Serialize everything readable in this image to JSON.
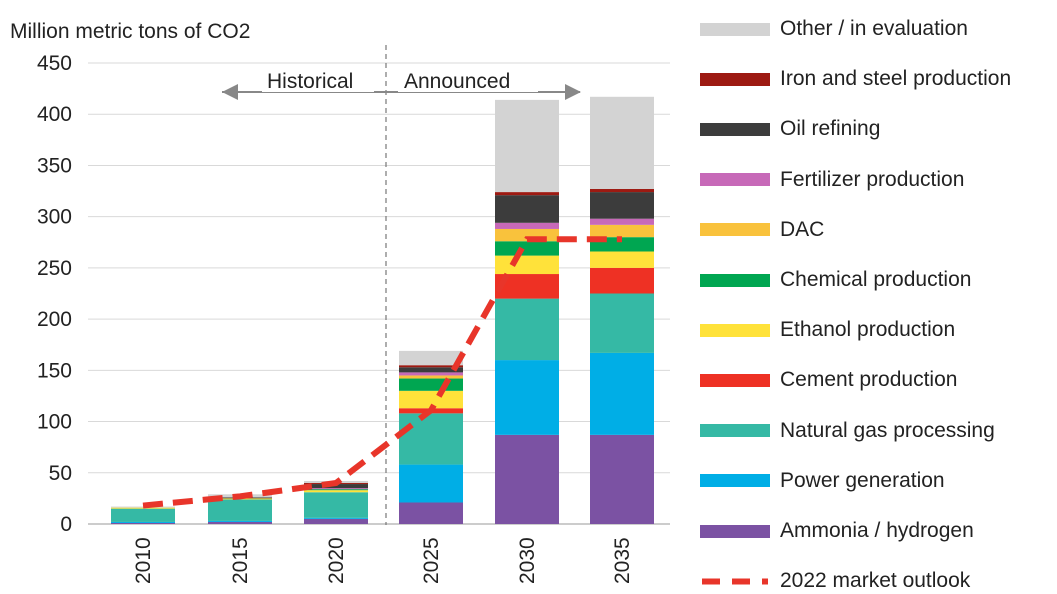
{
  "chart_data": {
    "type": "bar",
    "stacked": true,
    "ylabel": "Million metric tons of CO2",
    "ylim": [
      0,
      450
    ],
    "yticks": [
      0,
      50,
      100,
      150,
      200,
      250,
      300,
      350,
      400,
      450
    ],
    "grid": true,
    "legend_position": "right",
    "categories": [
      "2010",
      "2015",
      "2020",
      "2025",
      "2030",
      "2035"
    ],
    "series": [
      {
        "name": "Ammonia / hydrogen",
        "color": "#7b52a3",
        "values": [
          1,
          2,
          5,
          21,
          87,
          87
        ]
      },
      {
        "name": "Power generation",
        "color": "#00aee6",
        "values": [
          1,
          1,
          1,
          37,
          73,
          80
        ]
      },
      {
        "name": "Natural gas processing",
        "color": "#35b9a5",
        "values": [
          13,
          21,
          25,
          50,
          60,
          58
        ]
      },
      {
        "name": "Cement production",
        "color": "#ee3124",
        "values": [
          0,
          0,
          0,
          5,
          24,
          25
        ]
      },
      {
        "name": "Ethanol production",
        "color": "#ffe23a",
        "values": [
          1,
          1,
          2,
          17,
          18,
          16
        ]
      },
      {
        "name": "Chemical production",
        "color": "#00a651",
        "values": [
          0,
          0,
          1,
          12,
          14,
          14
        ]
      },
      {
        "name": "DAC",
        "color": "#f9c23c",
        "values": [
          0,
          0,
          0,
          3,
          12,
          12
        ]
      },
      {
        "name": "Fertilizer production",
        "color": "#c769b8",
        "values": [
          0,
          0,
          1,
          3,
          6,
          6
        ]
      },
      {
        "name": "Oil refining",
        "color": "#3c3c3c",
        "values": [
          0,
          1,
          4,
          5,
          27,
          26
        ]
      },
      {
        "name": "Iron and steel production",
        "color": "#9d1a12",
        "values": [
          0,
          0,
          1,
          2,
          3,
          3
        ]
      },
      {
        "name": "Other / in evaluation",
        "color": "#d3d3d3",
        "values": [
          1,
          3,
          2,
          14,
          90,
          90
        ]
      }
    ],
    "outlook": {
      "name": "2022 market outlook",
      "color": "#e8352a",
      "values": [
        18,
        27,
        40,
        111,
        278,
        278
      ]
    },
    "annotations": {
      "historical": "Historical",
      "announced": "Announced"
    }
  }
}
